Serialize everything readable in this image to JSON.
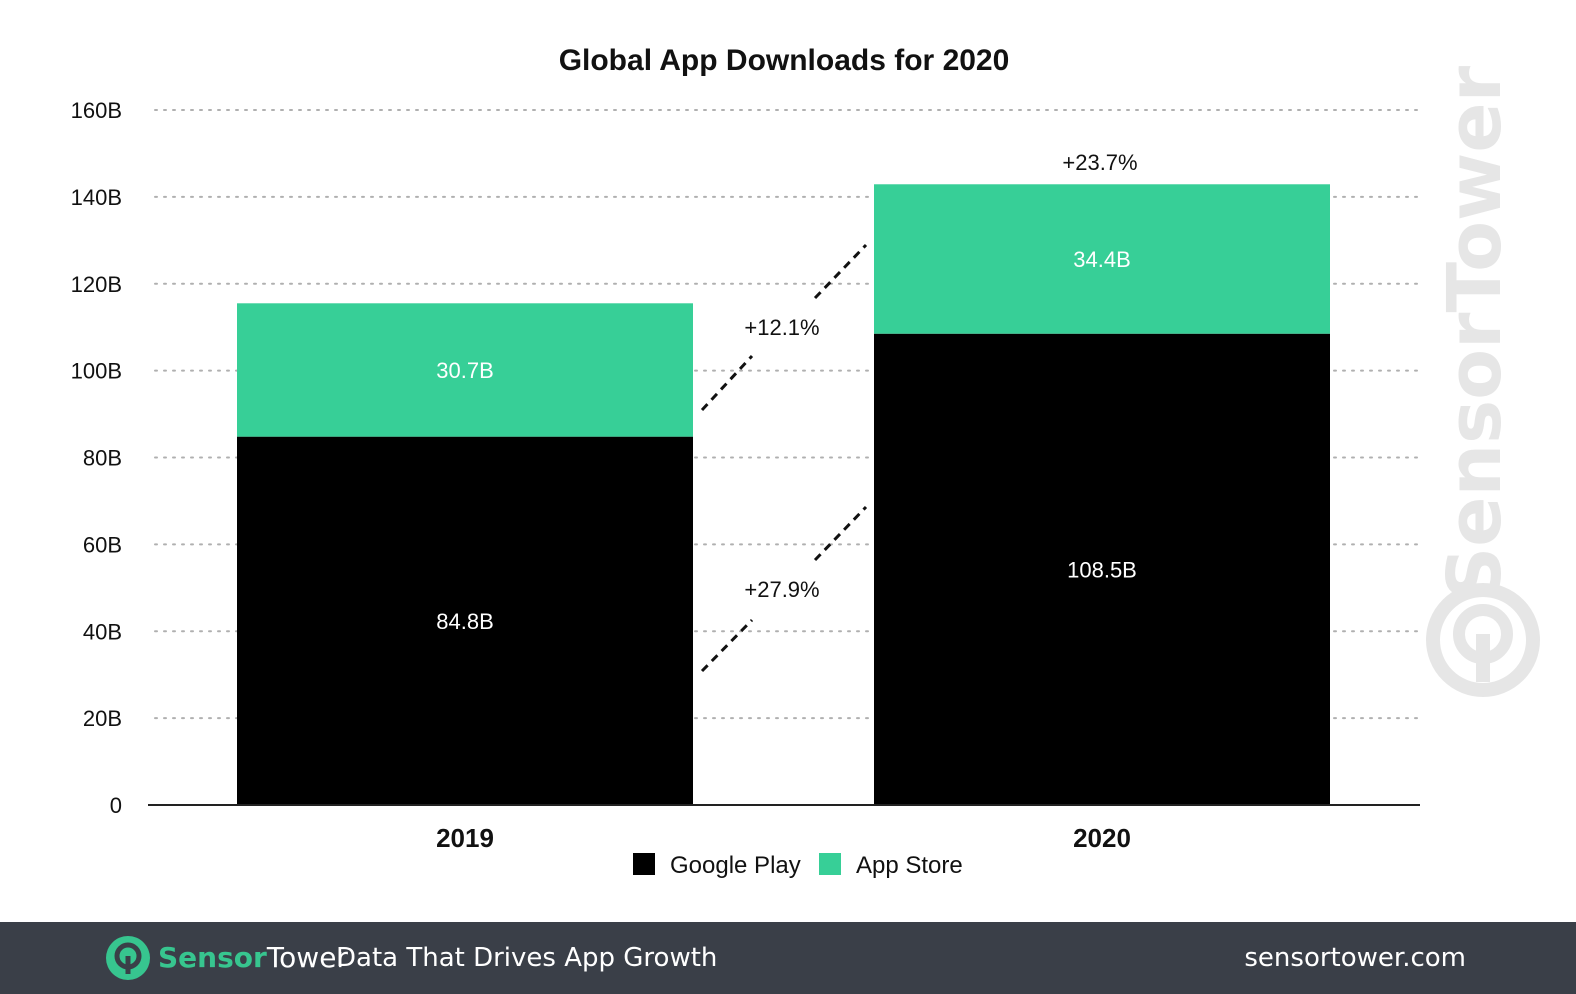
{
  "chart_data": {
    "type": "bar",
    "stacked": true,
    "title": "Global App Downloads for 2020",
    "categories": [
      "2019",
      "2020"
    ],
    "series": [
      {
        "name": "Google Play",
        "values": [
          84.8,
          108.5
        ],
        "labels": [
          "84.8B",
          "108.5B"
        ],
        "color": "#000000"
      },
      {
        "name": "App Store",
        "values": [
          30.7,
          34.4
        ],
        "labels": [
          "30.7B",
          "34.4B"
        ],
        "color": "#37cf97"
      }
    ],
    "ylim": [
      0,
      160
    ],
    "yticks": [
      0,
      20,
      40,
      60,
      80,
      100,
      120,
      140,
      160
    ],
    "ytick_labels": [
      "0",
      "20B",
      "40B",
      "60B",
      "80B",
      "100B",
      "120B",
      "140B",
      "160B"
    ],
    "grid": "dotted horizontal",
    "legend": "bottom-center",
    "annotations": {
      "total_growth": "+23.7%",
      "app_store_growth": "+12.1%",
      "google_play_growth": "+27.9%"
    }
  },
  "watermark": {
    "text": "SensorTower",
    "icon": "sensortower-logo-icon"
  },
  "footer": {
    "brand_part1": "Sensor",
    "brand_part2": "Tower",
    "tagline": "Data That Drives App Growth",
    "url": "sensortower.com",
    "background_color": "#3a3f48",
    "accent_color": "#37c58f"
  }
}
